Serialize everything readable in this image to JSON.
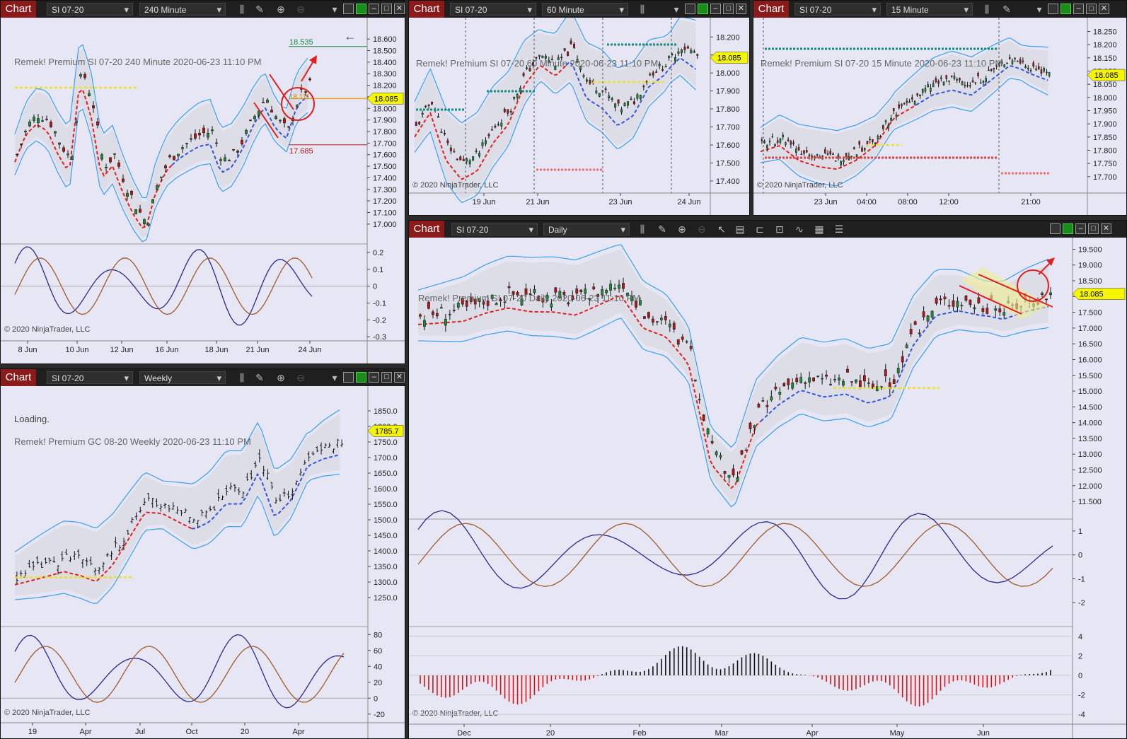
{
  "app": {
    "chart_tab_label": "Chart",
    "copyright": "© 2020 NinjaTrader, LLC"
  },
  "windows": [
    {
      "id": "w240",
      "instrument": "SI 07-20",
      "interval": "240 Minute",
      "caption": "Remek!  Premium  SI 07-20  240 Minute  2020-06-23 11:10 PM",
      "price_axis_ticks": [
        "18.600",
        "18.500",
        "18.400",
        "18.300",
        "18.200",
        "18.100",
        "18.000",
        "17.900",
        "17.800",
        "17.700",
        "17.600",
        "17.500",
        "17.400",
        "17.300",
        "17.200",
        "17.100",
        "17.000"
      ],
      "last_price": "18.085",
      "level_upper": "18.535",
      "level_lower": "17.685",
      "circle_label": "18.111",
      "osc_ticks": [
        "0.2",
        "0.1",
        "0",
        "-0.1",
        "-0.2",
        "-0.3"
      ],
      "time_ticks": [
        "8 Jun",
        "10 Jun",
        "12 Jun",
        "16 Jun",
        "18 Jun",
        "21 Jun",
        "24 Jun"
      ]
    },
    {
      "id": "w60",
      "instrument": "SI 07-20",
      "interval": "60 Minute",
      "caption": "Remek!  Premium  SI 07-20  60 Minute  2020-06-23 11:10 PM",
      "price_axis_ticks": [
        "18.200",
        "18.100",
        "18.000",
        "17.900",
        "17.800",
        "17.700",
        "17.600",
        "17.500",
        "17.400"
      ],
      "last_price": "18.085",
      "time_ticks": [
        "19 Jun",
        "21 Jun",
        "23 Jun",
        "24 Jun"
      ]
    },
    {
      "id": "w15",
      "instrument": "SI 07-20",
      "interval": "15 Minute",
      "caption": "Remek!  Premium  SI 07-20  15 Minute  2020-06-23 11:10 PM",
      "price_axis_ticks": [
        "18.250",
        "18.200",
        "18.150",
        "18.100",
        "18.050",
        "18.000",
        "17.950",
        "17.900",
        "17.850",
        "17.800",
        "17.750",
        "17.700"
      ],
      "last_price": "18.085",
      "time_ticks": [
        "23 Jun",
        "04:00",
        "08:00",
        "12:00",
        "21:00"
      ]
    },
    {
      "id": "wweekly",
      "instrument": "SI 07-20",
      "interval": "Weekly",
      "loading": "Loading.",
      "caption": "Remek!  Premium  GC 08-20  Weekly  2020-06-23 11:10 PM",
      "price_axis_ticks": [
        "1850.0",
        "1800.0",
        "1750.0",
        "1700.0",
        "1650.0",
        "1600.0",
        "1550.0",
        "1500.0",
        "1450.0",
        "1400.0",
        "1350.0",
        "1300.0",
        "1250.0"
      ],
      "last_price": "1785.7",
      "osc_ticks": [
        "80",
        "60",
        "40",
        "20",
        "0",
        "-20"
      ],
      "time_ticks": [
        "19",
        "Apr",
        "Jul",
        "Oct",
        "20",
        "Apr"
      ]
    },
    {
      "id": "wdaily",
      "instrument": "SI 07-20",
      "interval": "Daily",
      "caption": "Remek!  Premium  SI 07-20  Daily  2020-06-23 11:10 PM",
      "price_axis_ticks": [
        "19.500",
        "19.000",
        "18.500",
        "18.000",
        "17.500",
        "17.000",
        "16.500",
        "16.000",
        "15.500",
        "15.000",
        "14.500",
        "14.000",
        "13.500",
        "13.000",
        "12.500",
        "12.000",
        "11.500"
      ],
      "last_price": "18.085",
      "osc_ticks": [
        "1",
        "0",
        "-1",
        "-2"
      ],
      "hist_ticks": [
        "4",
        "2",
        "0",
        "-2",
        "-4"
      ],
      "time_ticks": [
        "Dec",
        "20",
        "Feb",
        "Mar",
        "Apr",
        "May",
        "Jun"
      ]
    }
  ],
  "colors": {
    "band": "#3aa0ee",
    "midline": "#3355dd",
    "up": "#1f8a3a",
    "down": "#b01818",
    "yellow": "#f0e020",
    "teal": "#138a80",
    "red": "#e02020",
    "magenta": "#ee22cc",
    "osc1": "#2a2a8c",
    "osc2": "#a05a2a",
    "tag": "#f5f500"
  },
  "chart_data": [
    {
      "type": "candlestick",
      "window": "w240",
      "ylim": [
        16.95,
        18.65
      ],
      "trend": [
        17.6,
        17.85,
        17.95,
        17.9,
        17.7,
        17.55,
        18.35,
        18.05,
        17.5,
        17.6,
        17.35,
        17.15,
        17.0,
        17.35,
        17.55,
        17.65,
        17.72,
        17.78,
        17.8,
        17.55,
        17.6,
        17.75,
        17.95,
        18.1,
        17.9,
        17.8,
        18.1,
        18.2
      ]
    },
    {
      "type": "candlestick",
      "window": "w60",
      "ylim": [
        17.38,
        18.26
      ],
      "trend": [
        17.7,
        17.85,
        17.6,
        17.5,
        17.55,
        17.7,
        17.8,
        18.0,
        18.1,
        18.05,
        18.15,
        17.95,
        17.9,
        17.8,
        17.85,
        18.0,
        18.05,
        18.15,
        18.1
      ]
    },
    {
      "type": "candlestick",
      "window": "w15",
      "ylim": [
        17.67,
        18.27
      ],
      "trend": [
        17.82,
        17.85,
        17.8,
        17.78,
        17.77,
        17.8,
        17.85,
        17.95,
        18.0,
        18.05,
        18.07,
        18.05,
        18.1,
        18.15,
        18.12,
        18.1
      ]
    },
    {
      "type": "ohlc",
      "window": "wweekly",
      "ylim": [
        1225,
        1875
      ],
      "trend": [
        1320,
        1340,
        1360,
        1380,
        1370,
        1350,
        1400,
        1480,
        1560,
        1550,
        1530,
        1510,
        1540,
        1600,
        1600,
        1700,
        1550,
        1600,
        1700,
        1730,
        1750
      ]
    },
    {
      "type": "candlestick",
      "window": "wdaily",
      "ylim": [
        11.3,
        19.6
      ],
      "trend": [
        17.4,
        17.5,
        17.6,
        17.9,
        18.1,
        18.0,
        18.0,
        17.9,
        18.2,
        18.5,
        17.4,
        17.1,
        16.2,
        13.0,
        12.2,
        14.3,
        15.0,
        15.5,
        15.3,
        15.4,
        15.1,
        15.3,
        16.9,
        17.8,
        17.9,
        17.7,
        17.6,
        17.9,
        18.1
      ]
    }
  ]
}
